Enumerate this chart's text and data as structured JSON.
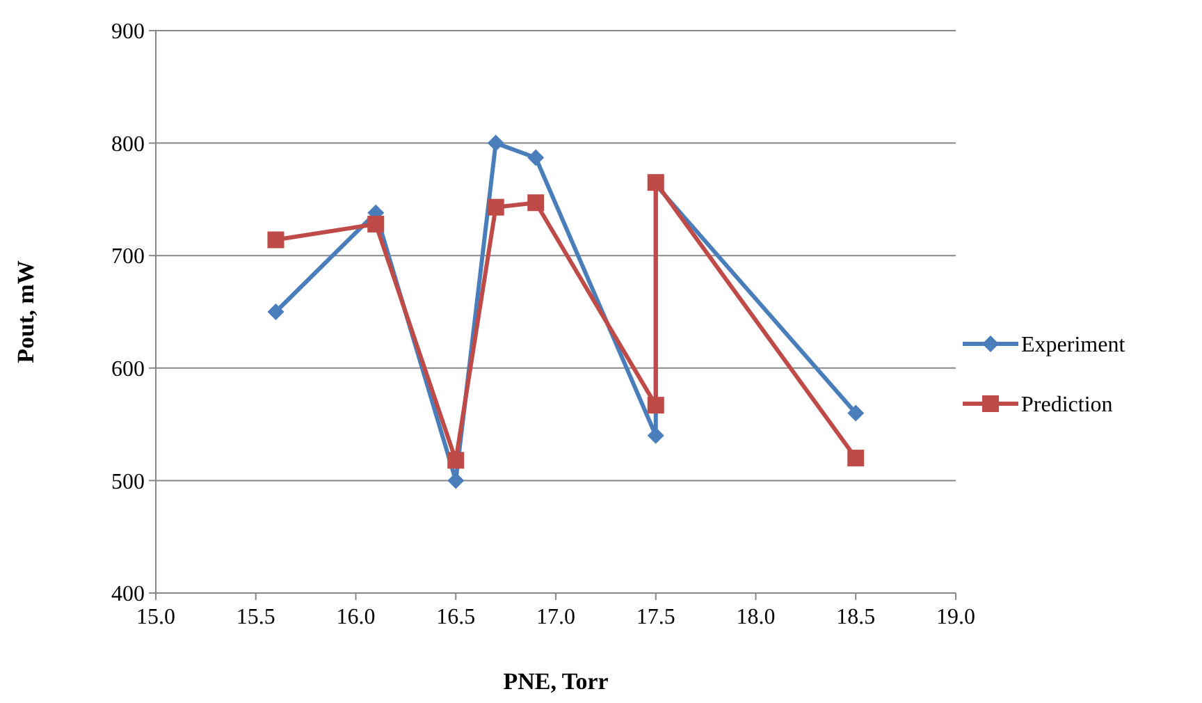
{
  "chart_data": {
    "type": "line",
    "xlabel": "PNE, Torr",
    "ylabel": "Pout, mW",
    "xlim": [
      15.0,
      19.0
    ],
    "xticks": [
      {
        "value": 15,
        "label": "15.0"
      },
      {
        "value": 15.5,
        "label": "15.5"
      },
      {
        "value": 16,
        "label": "16.0"
      },
      {
        "value": 16.5,
        "label": "16.5"
      },
      {
        "value": 17,
        "label": "17.0"
      },
      {
        "value": 17.5,
        "label": "17.5"
      },
      {
        "value": 18,
        "label": "18.0"
      },
      {
        "value": 18.5,
        "label": "18.5"
      },
      {
        "value": 19,
        "label": "19.0"
      }
    ],
    "ylim": [
      400,
      900
    ],
    "yticks": [
      400,
      500,
      600,
      700,
      800,
      900
    ],
    "grid": "y",
    "legend": "right",
    "line_style": "solid",
    "series": [
      {
        "name": "Experiment",
        "color": "#4a7ebb",
        "marker": "diamond",
        "x": [
          15.6,
          16.1,
          16.5,
          16.7,
          16.9,
          17.5,
          17.5,
          18.5
        ],
        "values": [
          650,
          738,
          500,
          800,
          787,
          540,
          763,
          560
        ]
      },
      {
        "name": "Prediction",
        "color": "#be4b48",
        "marker": "square",
        "x": [
          15.6,
          16.1,
          16.5,
          16.7,
          16.9,
          17.5,
          17.5,
          18.5
        ],
        "values": [
          714,
          728,
          518,
          743,
          747,
          567,
          765,
          520
        ]
      }
    ]
  }
}
